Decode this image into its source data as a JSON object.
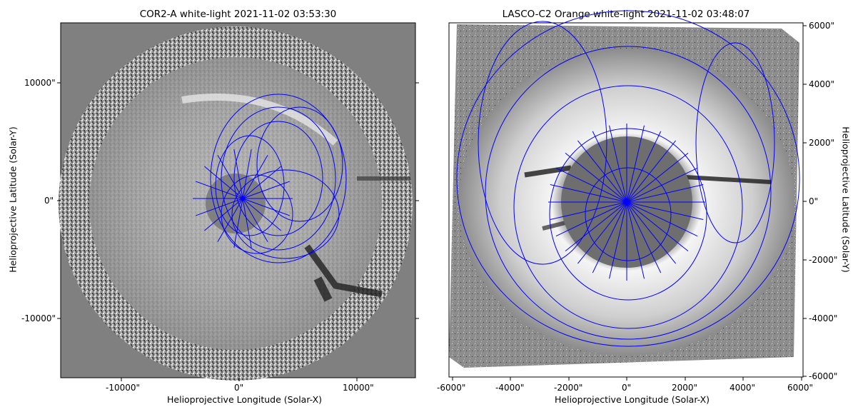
{
  "left_panel": {
    "title": "COR2-A white-light 2021-11-02 03:53:30",
    "xlabel": "Helioprojective Longitude (Solar-X)",
    "ylabel": "Helioprojective Latitude (Solar-Y)",
    "xticks": [
      "-10000\"",
      "0\"",
      "10000\""
    ],
    "yticks": [
      "10000\"",
      "0\"",
      "-10000\""
    ],
    "colors": {
      "background": "#808080",
      "mesh": "#0000ff"
    }
  },
  "right_panel": {
    "title": "LASCO-C2 Orange white-light 2021-11-02 03:48:07",
    "xlabel": "Helioprojective Longitude (Solar-X)",
    "ylabel": "Helioprojective Latitude (Solar-Y)",
    "xticks": [
      "-6000\"",
      "-4000\"",
      "-2000\"",
      "0\"",
      "2000\"",
      "4000\"",
      "6000\""
    ],
    "yticks": [
      "6000\"",
      "4000\"",
      "2000\"",
      "0\"",
      "-2000\"",
      "-4000\"",
      "-6000\""
    ],
    "colors": {
      "background": "#9a9a9a",
      "mesh": "#0000ff"
    }
  }
}
